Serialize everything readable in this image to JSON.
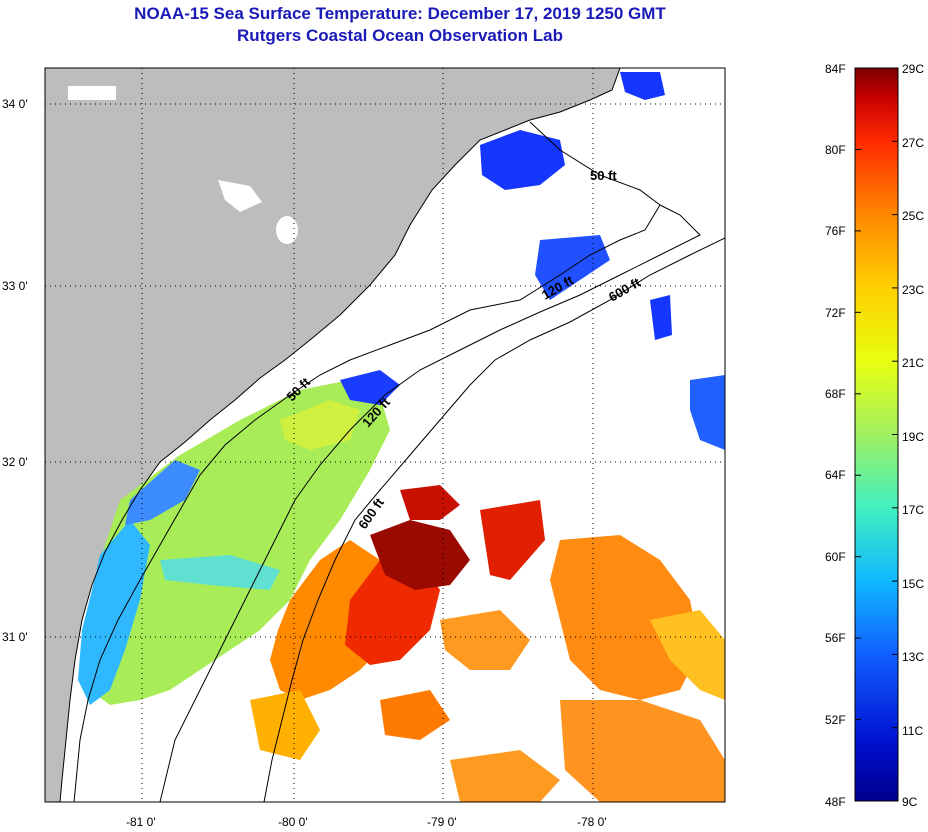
{
  "title": {
    "line1": "NOAA-15 Sea Surface Temperature:  December 17, 2019 1250 GMT",
    "line2": "Rutgers Coastal Ocean Observation Lab"
  },
  "map": {
    "lat_labels": [
      "34 0'",
      "33 0'",
      "32 0'",
      "31 0'"
    ],
    "lon_labels": [
      "-81 0'",
      "-80 0'",
      "-79 0'",
      "-78 0'"
    ],
    "contour_labels": [
      "50 ft",
      "120 ft",
      "600 ft",
      "50 ft",
      "120 ft",
      "600 ft"
    ],
    "land_color": "#bdbdbd",
    "ocean_nodata_color": "#ffffff"
  },
  "colorbar": {
    "f_labels": [
      "84F",
      "80F",
      "76F",
      "72F",
      "68F",
      "64F",
      "60F",
      "56F",
      "52F",
      "48F"
    ],
    "c_labels": [
      "29C",
      "27C",
      "25C",
      "23C",
      "21C",
      "19C",
      "17C",
      "15C",
      "13C",
      "11C",
      "9C"
    ],
    "colors": [
      "#7a0000",
      "#c80000",
      "#ff2a00",
      "#ff8800",
      "#ffd000",
      "#e8ff10",
      "#a0f060",
      "#40f0c0",
      "#10b8ff",
      "#1060ff",
      "#0010d0",
      "#00008c"
    ]
  }
}
